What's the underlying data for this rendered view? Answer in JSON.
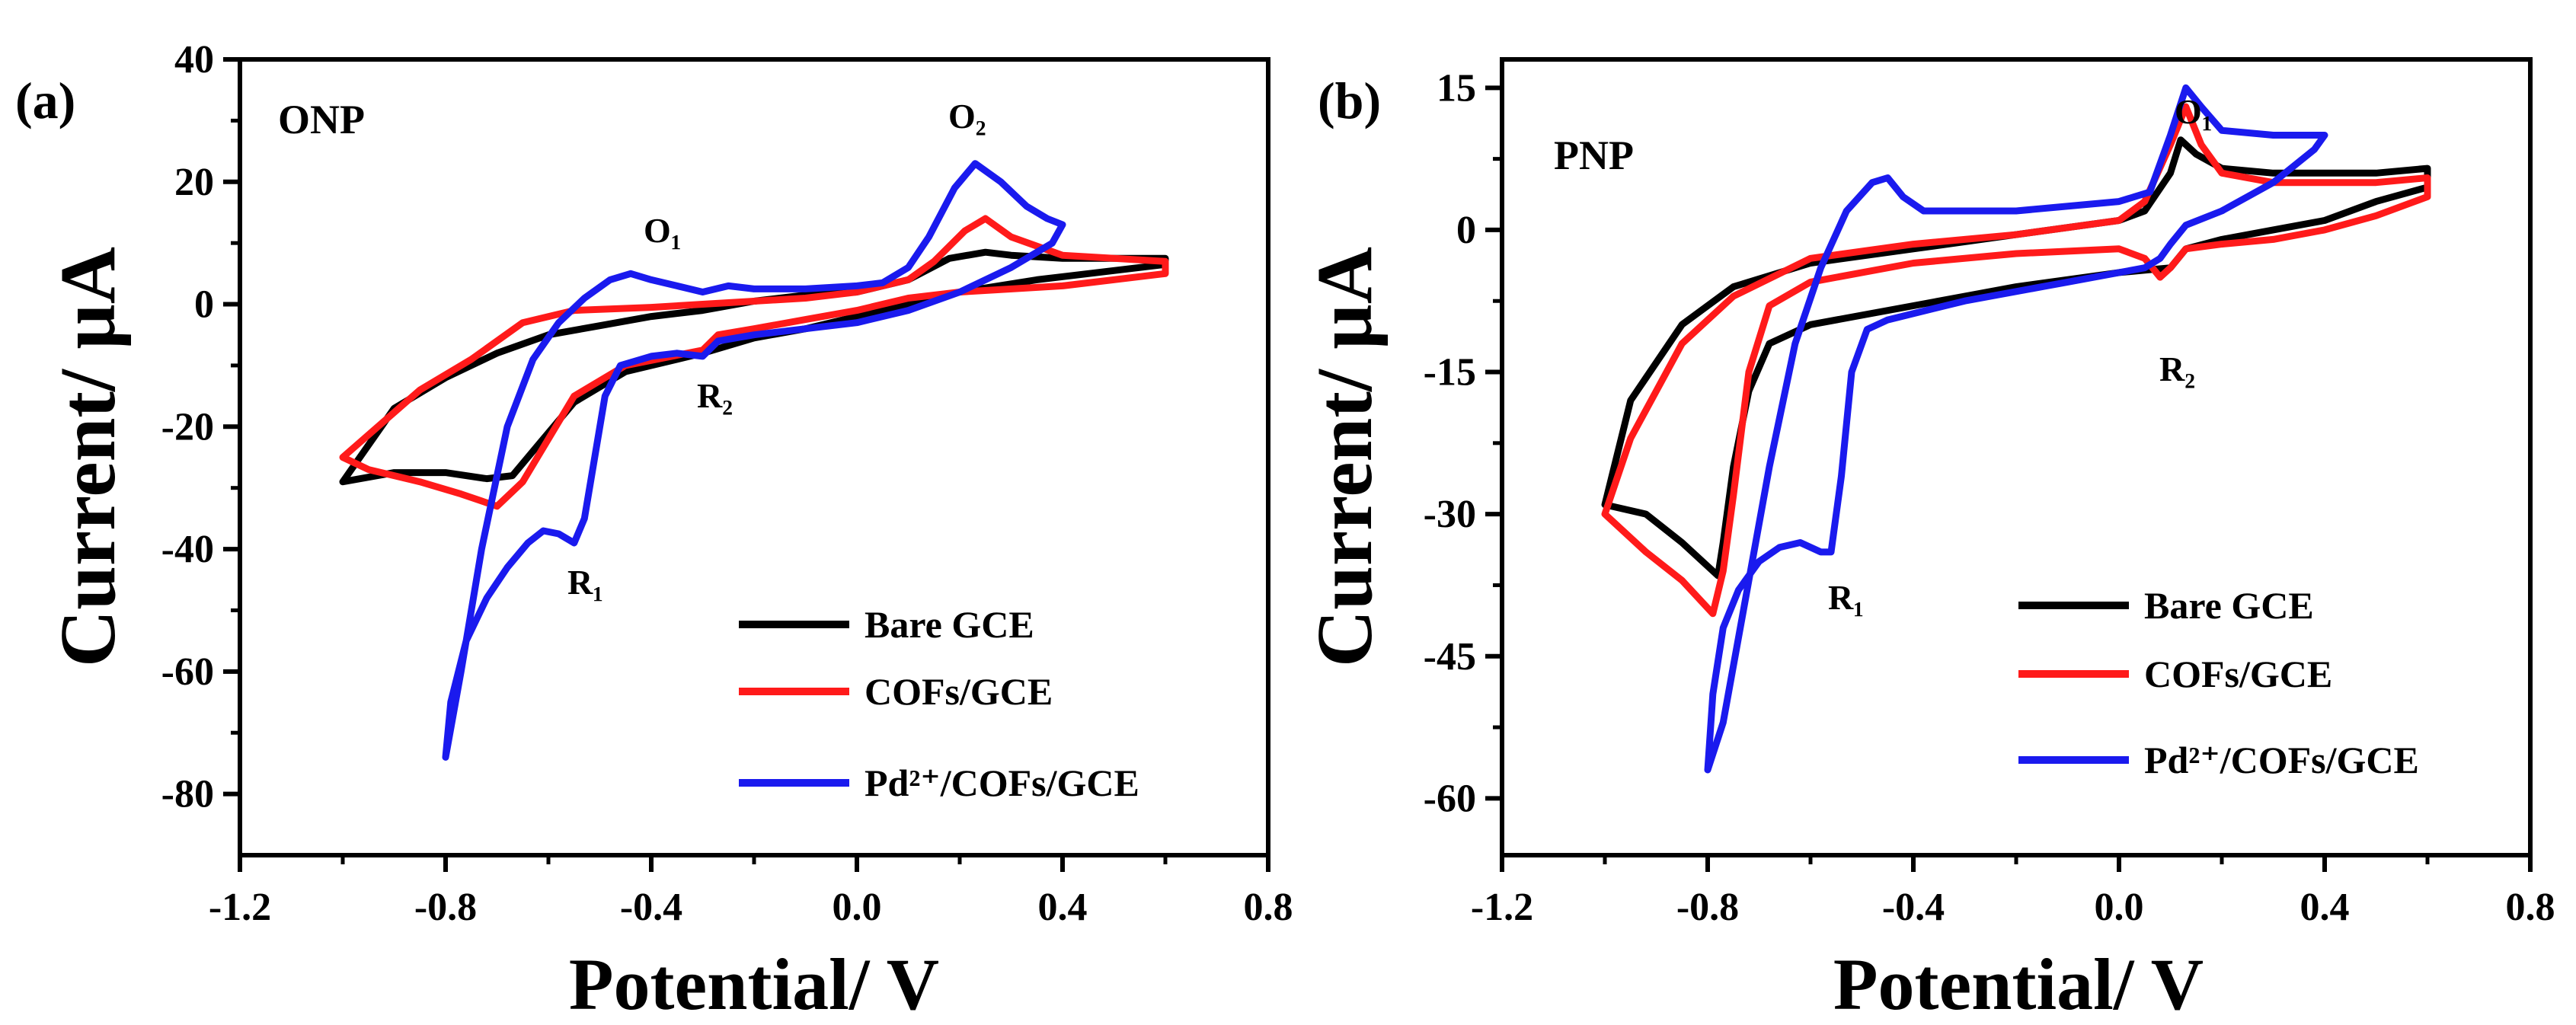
{
  "colors": {
    "bare": "#000000",
    "cofs": "#ff1a1a",
    "pd": "#1a1aee",
    "axis": "#000000",
    "background": "#ffffff"
  },
  "chart_data": [
    {
      "type": "line",
      "panel_label": "(a)",
      "title": "ONP",
      "xlabel": "Potential/ V",
      "ylabel": "Current/ µA",
      "xlim": [
        -1.2,
        0.8
      ],
      "ylim": [
        -90,
        40
      ],
      "x_ticks": [
        -1.2,
        -0.8,
        -0.4,
        0.0,
        0.4,
        0.8
      ],
      "x_tick_labels": [
        "-1.2",
        "-0.8",
        "-0.4",
        "0.0",
        "0.4",
        "0.8"
      ],
      "y_ticks": [
        -80,
        -60,
        -40,
        -20,
        0,
        20,
        40
      ],
      "y_tick_labels": [
        "-80",
        "-60",
        "-40",
        "-20",
        "0",
        "20",
        "40"
      ],
      "legend": {
        "placement": "bottom-right",
        "entries": [
          {
            "label": "Bare GCE",
            "series": "bare"
          },
          {
            "label": "COFs/GCE",
            "series": "cofs"
          },
          {
            "label": "Pd²⁺/COFs/GCE",
            "series": "pd"
          }
        ]
      },
      "annotations": [
        {
          "label": "O₁",
          "x": -0.43,
          "y": 10
        },
        {
          "label": "O₂",
          "x": 0.21,
          "y": 29
        },
        {
          "label": "R₁",
          "x": -0.57,
          "y": -48
        },
        {
          "label": "R₂",
          "x": -0.29,
          "y": -17
        }
      ],
      "series": [
        {
          "name": "Bare GCE",
          "key": "bare",
          "points": [
            [
              -1.0,
              -29
            ],
            [
              -0.9,
              -27.5
            ],
            [
              -0.8,
              -27.5
            ],
            [
              -0.72,
              -28.5
            ],
            [
              -0.67,
              -28
            ],
            [
              -0.62,
              -23
            ],
            [
              -0.55,
              -16
            ],
            [
              -0.45,
              -11
            ],
            [
              -0.3,
              -8
            ],
            [
              -0.2,
              -5.5
            ],
            [
              -0.1,
              -4
            ],
            [
              0.0,
              -2
            ],
            [
              0.1,
              0
            ],
            [
              0.2,
              2
            ],
            [
              0.35,
              4
            ],
            [
              0.5,
              5.5
            ],
            [
              0.6,
              6.5
            ],
            [
              0.6,
              7.5
            ],
            [
              0.5,
              7.5
            ],
            [
              0.4,
              7.5
            ],
            [
              0.3,
              8
            ],
            [
              0.25,
              8.5
            ],
            [
              0.18,
              7.5
            ],
            [
              0.1,
              4
            ],
            [
              0.0,
              2
            ],
            [
              -0.1,
              1.5
            ],
            [
              -0.2,
              0.5
            ],
            [
              -0.3,
              -1
            ],
            [
              -0.4,
              -2
            ],
            [
              -0.5,
              -3.5
            ],
            [
              -0.6,
              -5
            ],
            [
              -0.7,
              -8
            ],
            [
              -0.8,
              -12
            ],
            [
              -0.9,
              -17
            ],
            [
              -1.0,
              -29
            ]
          ]
        },
        {
          "name": "COFs/GCE",
          "key": "cofs",
          "points": [
            [
              -1.0,
              -25
            ],
            [
              -0.95,
              -27
            ],
            [
              -0.85,
              -29
            ],
            [
              -0.77,
              -31
            ],
            [
              -0.7,
              -33
            ],
            [
              -0.65,
              -29
            ],
            [
              -0.6,
              -22
            ],
            [
              -0.55,
              -15
            ],
            [
              -0.45,
              -10
            ],
            [
              -0.3,
              -7.5
            ],
            [
              -0.27,
              -5
            ],
            [
              -0.2,
              -4
            ],
            [
              -0.1,
              -2.5
            ],
            [
              0.0,
              -1
            ],
            [
              0.1,
              1
            ],
            [
              0.2,
              2
            ],
            [
              0.4,
              3
            ],
            [
              0.6,
              5
            ],
            [
              0.6,
              7
            ],
            [
              0.5,
              7.5
            ],
            [
              0.4,
              8
            ],
            [
              0.3,
              11
            ],
            [
              0.25,
              14
            ],
            [
              0.21,
              12
            ],
            [
              0.15,
              7
            ],
            [
              0.1,
              4
            ],
            [
              0.0,
              2
            ],
            [
              -0.1,
              1
            ],
            [
              -0.2,
              0.5
            ],
            [
              -0.3,
              0
            ],
            [
              -0.4,
              -0.5
            ],
            [
              -0.55,
              -1
            ],
            [
              -0.65,
              -3
            ],
            [
              -0.75,
              -9
            ],
            [
              -0.85,
              -14
            ],
            [
              -1.0,
              -25
            ]
          ]
        },
        {
          "name": "Pd²⁺/COFs/GCE",
          "key": "pd",
          "points": [
            [
              -0.8,
              -74
            ],
            [
              -0.79,
              -65
            ],
            [
              -0.76,
              -55
            ],
            [
              -0.72,
              -48
            ],
            [
              -0.68,
              -43
            ],
            [
              -0.64,
              -39
            ],
            [
              -0.61,
              -37
            ],
            [
              -0.58,
              -37.5
            ],
            [
              -0.55,
              -39
            ],
            [
              -0.53,
              -35
            ],
            [
              -0.51,
              -25
            ],
            [
              -0.49,
              -15
            ],
            [
              -0.46,
              -10
            ],
            [
              -0.4,
              -8.5
            ],
            [
              -0.35,
              -8
            ],
            [
              -0.3,
              -8.5
            ],
            [
              -0.27,
              -6
            ],
            [
              -0.2,
              -5
            ],
            [
              0.0,
              -3
            ],
            [
              0.1,
              -1
            ],
            [
              0.2,
              2
            ],
            [
              0.3,
              6
            ],
            [
              0.38,
              10
            ],
            [
              0.4,
              13
            ],
            [
              0.37,
              14
            ],
            [
              0.33,
              16
            ],
            [
              0.28,
              20
            ],
            [
              0.23,
              23
            ],
            [
              0.19,
              19
            ],
            [
              0.14,
              11
            ],
            [
              0.1,
              6
            ],
            [
              0.05,
              3.5
            ],
            [
              0.0,
              3
            ],
            [
              -0.1,
              2.5
            ],
            [
              -0.2,
              2.5
            ],
            [
              -0.25,
              3
            ],
            [
              -0.3,
              2
            ],
            [
              -0.35,
              3
            ],
            [
              -0.4,
              4
            ],
            [
              -0.44,
              5
            ],
            [
              -0.48,
              4
            ],
            [
              -0.53,
              1
            ],
            [
              -0.58,
              -3
            ],
            [
              -0.63,
              -9
            ],
            [
              -0.68,
              -20
            ],
            [
              -0.73,
              -40
            ],
            [
              -0.77,
              -60
            ],
            [
              -0.8,
              -74
            ]
          ]
        }
      ]
    },
    {
      "type": "line",
      "panel_label": "(b)",
      "title": "PNP",
      "xlabel": "Potential/ V",
      "ylabel": "Current/ µA",
      "xlim": [
        -1.2,
        0.8
      ],
      "ylim": [
        -66,
        18
      ],
      "x_ticks": [
        -1.2,
        -0.8,
        -0.4,
        0.0,
        0.4,
        0.8
      ],
      "x_tick_labels": [
        "-1.2",
        "-0.8",
        "-0.4",
        "0.0",
        "0.4",
        "0.8"
      ],
      "y_ticks": [
        -60,
        -45,
        -30,
        -15,
        0,
        15
      ],
      "y_tick_labels": [
        "-60",
        "-45",
        "-30",
        "-15",
        "0",
        "15"
      ],
      "legend": {
        "placement": "bottom-right",
        "entries": [
          {
            "label": "Bare GCE",
            "series": "bare"
          },
          {
            "label": "COFs/GCE",
            "series": "cofs"
          },
          {
            "label": "Pd²⁺/COFs/GCE",
            "series": "pd"
          }
        ]
      },
      "annotations": [
        {
          "label": "O₁",
          "x": 0.13,
          "y": 18
        },
        {
          "label": "R₂",
          "x": 0.1,
          "y": -10
        },
        {
          "label": "R₁",
          "x": -0.57,
          "y": -37
        }
      ],
      "series": [
        {
          "name": "Bare GCE",
          "key": "bare",
          "points": [
            [
              -1.0,
              -29
            ],
            [
              -0.92,
              -30
            ],
            [
              -0.85,
              -33
            ],
            [
              -0.78,
              -36.5
            ],
            [
              -0.77,
              -33
            ],
            [
              -0.75,
              -25
            ],
            [
              -0.72,
              -17
            ],
            [
              -0.68,
              -12
            ],
            [
              -0.6,
              -10
            ],
            [
              -0.4,
              -8
            ],
            [
              -0.2,
              -6
            ],
            [
              0.0,
              -4.5
            ],
            [
              0.1,
              -4
            ],
            [
              0.13,
              -2
            ],
            [
              0.2,
              -1
            ],
            [
              0.3,
              0
            ],
            [
              0.4,
              1
            ],
            [
              0.5,
              3
            ],
            [
              0.6,
              4.5
            ],
            [
              0.6,
              6.5
            ],
            [
              0.5,
              6
            ],
            [
              0.4,
              6
            ],
            [
              0.3,
              6
            ],
            [
              0.2,
              6.5
            ],
            [
              0.15,
              8
            ],
            [
              0.12,
              9.5
            ],
            [
              0.1,
              6
            ],
            [
              0.05,
              2
            ],
            [
              0.0,
              1
            ],
            [
              -0.2,
              -0.5
            ],
            [
              -0.4,
              -2
            ],
            [
              -0.6,
              -3.5
            ],
            [
              -0.75,
              -6
            ],
            [
              -0.85,
              -10
            ],
            [
              -0.95,
              -18
            ],
            [
              -1.0,
              -29
            ]
          ]
        },
        {
          "name": "COFs/GCE",
          "key": "cofs",
          "points": [
            [
              -1.0,
              -30
            ],
            [
              -0.92,
              -34
            ],
            [
              -0.85,
              -37
            ],
            [
              -0.79,
              -40.5
            ],
            [
              -0.77,
              -36
            ],
            [
              -0.75,
              -28
            ],
            [
              -0.72,
              -15
            ],
            [
              -0.68,
              -8
            ],
            [
              -0.6,
              -5.5
            ],
            [
              -0.4,
              -3.5
            ],
            [
              -0.2,
              -2.5
            ],
            [
              0.0,
              -2
            ],
            [
              0.05,
              -3
            ],
            [
              0.08,
              -5
            ],
            [
              0.1,
              -4
            ],
            [
              0.13,
              -2
            ],
            [
              0.2,
              -1.5
            ],
            [
              0.3,
              -1
            ],
            [
              0.4,
              0
            ],
            [
              0.5,
              1.5
            ],
            [
              0.6,
              3.5
            ],
            [
              0.6,
              5.5
            ],
            [
              0.5,
              5
            ],
            [
              0.4,
              5
            ],
            [
              0.3,
              5
            ],
            [
              0.2,
              6
            ],
            [
              0.16,
              9
            ],
            [
              0.13,
              13
            ],
            [
              0.1,
              9
            ],
            [
              0.05,
              3
            ],
            [
              0.0,
              1
            ],
            [
              -0.2,
              -0.5
            ],
            [
              -0.4,
              -1.5
            ],
            [
              -0.6,
              -3
            ],
            [
              -0.75,
              -7
            ],
            [
              -0.85,
              -12
            ],
            [
              -0.95,
              -22
            ],
            [
              -1.0,
              -30
            ]
          ]
        },
        {
          "name": "Pd²⁺/COFs/GCE",
          "key": "pd",
          "points": [
            [
              -0.8,
              -57
            ],
            [
              -0.79,
              -49
            ],
            [
              -0.77,
              -42
            ],
            [
              -0.74,
              -38
            ],
            [
              -0.7,
              -35
            ],
            [
              -0.66,
              -33.5
            ],
            [
              -0.62,
              -33
            ],
            [
              -0.58,
              -34
            ],
            [
              -0.56,
              -34
            ],
            [
              -0.54,
              -26
            ],
            [
              -0.52,
              -15
            ],
            [
              -0.49,
              -10.5
            ],
            [
              -0.45,
              -9.5
            ],
            [
              -0.3,
              -7.5
            ],
            [
              -0.1,
              -5.5
            ],
            [
              0.0,
              -4.5
            ],
            [
              0.05,
              -4
            ],
            [
              0.08,
              -3
            ],
            [
              0.1,
              -1.5
            ],
            [
              0.13,
              0.5
            ],
            [
              0.2,
              2
            ],
            [
              0.3,
              5
            ],
            [
              0.38,
              8.5
            ],
            [
              0.4,
              10
            ],
            [
              0.37,
              10
            ],
            [
              0.3,
              10
            ],
            [
              0.2,
              10.5
            ],
            [
              0.16,
              13
            ],
            [
              0.13,
              15
            ],
            [
              0.1,
              10
            ],
            [
              0.06,
              4
            ],
            [
              0.0,
              3
            ],
            [
              -0.2,
              2
            ],
            [
              -0.38,
              2
            ],
            [
              -0.42,
              3.5
            ],
            [
              -0.45,
              5.5
            ],
            [
              -0.48,
              5
            ],
            [
              -0.53,
              2
            ],
            [
              -0.58,
              -4
            ],
            [
              -0.63,
              -12
            ],
            [
              -0.68,
              -25
            ],
            [
              -0.73,
              -40
            ],
            [
              -0.77,
              -52
            ],
            [
              -0.8,
              -57
            ]
          ]
        }
      ]
    }
  ]
}
